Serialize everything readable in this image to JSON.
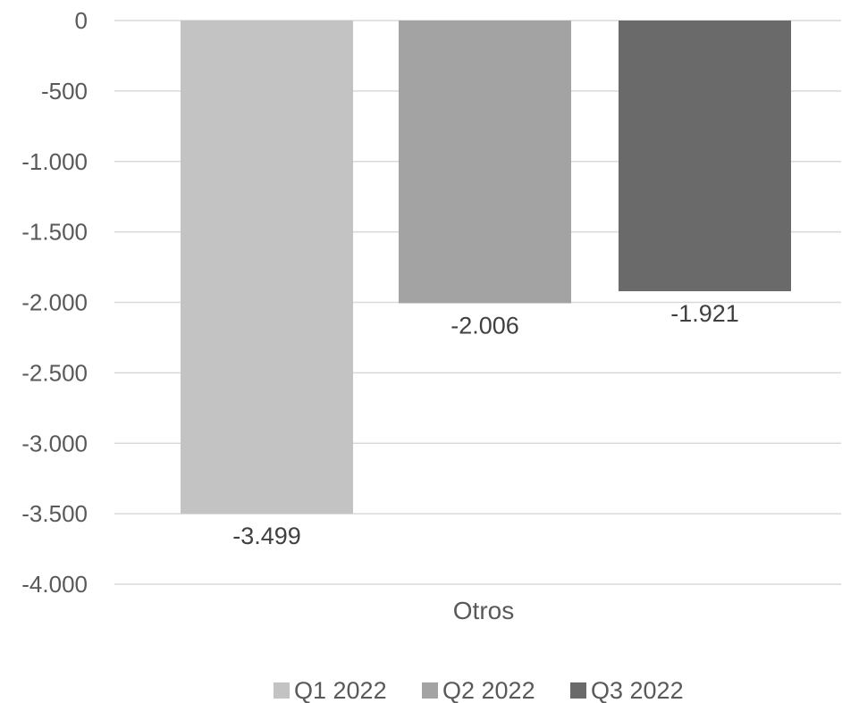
{
  "chart_data": {
    "type": "bar",
    "categories": [
      "Otros"
    ],
    "series": [
      {
        "name": "Q1 2022",
        "values": [
          -3499
        ],
        "value_label": "-3.499",
        "color": "#c3c3c3"
      },
      {
        "name": "Q2 2022",
        "values": [
          -2006
        ],
        "value_label": "-2.006",
        "color": "#a3a3a3"
      },
      {
        "name": "Q3 2022",
        "values": [
          -1921
        ],
        "value_label": "-1.921",
        "color": "#6a6a6a"
      }
    ],
    "yticks": [
      {
        "value": 0,
        "label": "0"
      },
      {
        "value": -500,
        "label": "-500"
      },
      {
        "value": -1000,
        "label": "-1.000"
      },
      {
        "value": -1500,
        "label": "-1.500"
      },
      {
        "value": -2000,
        "label": "-2.000"
      },
      {
        "value": -2500,
        "label": "-2.500"
      },
      {
        "value": -3000,
        "label": "-3.000"
      },
      {
        "value": -3500,
        "label": "-3.500"
      },
      {
        "value": -4000,
        "label": "-4.000"
      }
    ],
    "ylim": [
      -4000,
      0
    ],
    "grid": true,
    "legend": "bottom",
    "gridline_color": "#d9d9d9"
  }
}
